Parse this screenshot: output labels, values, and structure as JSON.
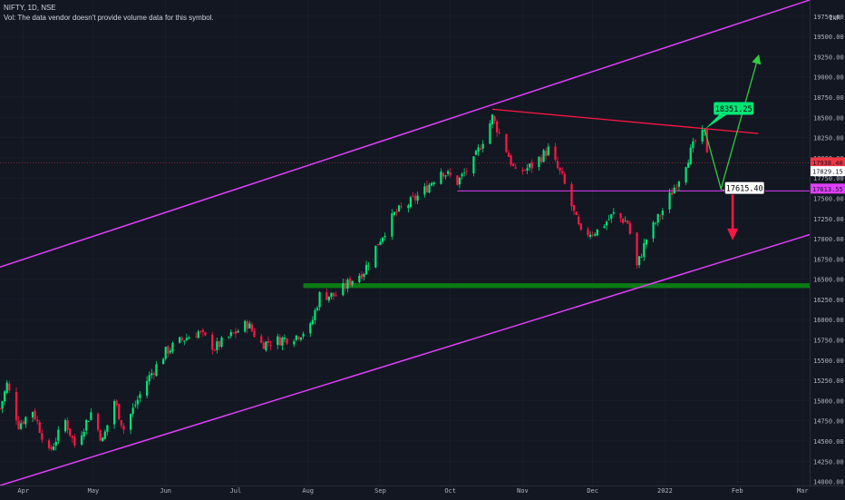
{
  "header": {
    "symbol_line": "NIFTY, 1D, NSE",
    "volume_note": "Vol: The data vendor doesn't provide volume data for this symbol."
  },
  "colors": {
    "background": "#131722",
    "up_candle": "#26a69a",
    "down_candle": "#ef5350",
    "up_bright": "#00e676",
    "down_bright": "#ff1744",
    "channel": "#e040fb",
    "support_zone": "#0a7a14",
    "resistance_line": "#ff1744",
    "projection": "#2ecc40",
    "grid": "#1e2230"
  },
  "chart_data": {
    "type": "candlestick",
    "currency": "INR",
    "ylim": [
      13950,
      19950
    ],
    "xlim": [
      "2021-03-22",
      "2022-03-04"
    ],
    "grid": false,
    "price_ticks": [
      14000,
      14250,
      14500,
      14750,
      15000,
      15250,
      15500,
      15750,
      16000,
      16250,
      16500,
      16750,
      17000,
      17250,
      17500,
      17750,
      18000,
      18250,
      18500,
      18750,
      19000,
      19250,
      19500,
      19750
    ],
    "time_ticks": [
      {
        "label": "Apr",
        "date": "2021-04-01"
      },
      {
        "label": "May",
        "date": "2021-05-01"
      },
      {
        "label": "Jun",
        "date": "2021-06-01"
      },
      {
        "label": "Jul",
        "date": "2021-07-01"
      },
      {
        "label": "Aug",
        "date": "2021-08-01"
      },
      {
        "label": "Sep",
        "date": "2021-09-01"
      },
      {
        "label": "Oct",
        "date": "2021-10-01"
      },
      {
        "label": "Nov",
        "date": "2021-11-01"
      },
      {
        "label": "Dec",
        "date": "2021-12-01"
      },
      {
        "label": "2022",
        "date": "2022-01-01"
      },
      {
        "label": "Feb",
        "date": "2022-02-01"
      },
      {
        "label": "Mar",
        "date": "2022-03-01"
      }
    ],
    "price_path": [
      [
        "2021-03-22",
        14900
      ],
      [
        "2021-03-25",
        15200
      ],
      [
        "2021-03-30",
        14700
      ],
      [
        "2021-04-05",
        14880
      ],
      [
        "2021-04-12",
        14350
      ],
      [
        "2021-04-19",
        14750
      ],
      [
        "2021-04-23",
        14450
      ],
      [
        "2021-04-30",
        14850
      ],
      [
        "2021-05-05",
        14500
      ],
      [
        "2021-05-10",
        15000
      ],
      [
        "2021-05-14",
        14650
      ],
      [
        "2021-05-24",
        15250
      ],
      [
        "2021-06-01",
        15600
      ],
      [
        "2021-06-08",
        15750
      ],
      [
        "2021-06-15",
        15850
      ],
      [
        "2021-06-22",
        15650
      ],
      [
        "2021-06-29",
        15800
      ],
      [
        "2021-07-06",
        15950
      ],
      [
        "2021-07-12",
        15700
      ],
      [
        "2021-07-20",
        15750
      ],
      [
        "2021-07-27",
        15800
      ],
      [
        "2021-08-02",
        15900
      ],
      [
        "2021-08-06",
        16300
      ],
      [
        "2021-08-13",
        16300
      ],
      [
        "2021-08-20",
        16500
      ],
      [
        "2021-08-25",
        16600
      ],
      [
        "2021-08-31",
        16950
      ],
      [
        "2021-09-07",
        17300
      ],
      [
        "2021-09-14",
        17450
      ],
      [
        "2021-09-20",
        17600
      ],
      [
        "2021-09-27",
        17850
      ],
      [
        "2021-10-04",
        17700
      ],
      [
        "2021-10-11",
        17950
      ],
      [
        "2021-10-19",
        18500
      ],
      [
        "2021-10-25",
        18100
      ],
      [
        "2021-10-29",
        17800
      ],
      [
        "2021-11-05",
        17900
      ],
      [
        "2021-11-12",
        18100
      ],
      [
        "2021-11-18",
        17750
      ],
      [
        "2021-11-26",
        17050
      ],
      [
        "2021-12-03",
        17100
      ],
      [
        "2021-12-10",
        17300
      ],
      [
        "2021-12-16",
        17200
      ],
      [
        "2021-12-20",
        16650
      ],
      [
        "2021-12-24",
        17000
      ],
      [
        "2021-12-31",
        17350
      ],
      [
        "2022-01-07",
        17750
      ],
      [
        "2022-01-14",
        18200
      ],
      [
        "2022-01-18",
        18300
      ],
      [
        "2022-01-20",
        17900
      ]
    ],
    "price_labels": [
      {
        "text": "17938.40",
        "value": 17938.4,
        "style": "last-price",
        "color": "#f23645"
      },
      {
        "text": "17829.15",
        "value": 17829.15,
        "style": "line-level",
        "color": "#ffffff"
      },
      {
        "text": "17613.55",
        "value": 17613.55,
        "style": "line-level",
        "color": "#e040fb"
      }
    ],
    "annotations": [
      {
        "text": "18351.25",
        "value": 18351.25,
        "date": "2022-01-18",
        "kind": "callout-target",
        "color": "#00e676"
      },
      {
        "text": "17615.40",
        "value": 17615.4,
        "date": "2022-01-25",
        "kind": "callout-pullback",
        "color": "#ffffff"
      }
    ],
    "drawings": {
      "channel_upper": [
        [
          "2021-03-22",
          16650
        ],
        [
          "2022-03-04",
          19950
        ]
      ],
      "channel_lower": [
        [
          "2021-03-22",
          13950
        ],
        [
          "2022-03-04",
          17050
        ]
      ],
      "resistance": [
        [
          "2021-10-19",
          18600
        ],
        [
          "2022-02-10",
          18300
        ]
      ],
      "support_line": [
        [
          "2021-10-04",
          17590
        ],
        [
          "2022-03-04",
          17590
        ]
      ],
      "support_zone": [
        16390,
        16450
      ],
      "support_zone_start": "2021-07-30",
      "projection_path": [
        [
          "2022-01-18",
          18351.25
        ],
        [
          "2022-01-25",
          17615.4
        ],
        [
          "2022-02-10",
          19250
        ]
      ],
      "down_arrow": {
        "date": "2022-01-30",
        "from": 17560,
        "to": 16980
      }
    }
  }
}
